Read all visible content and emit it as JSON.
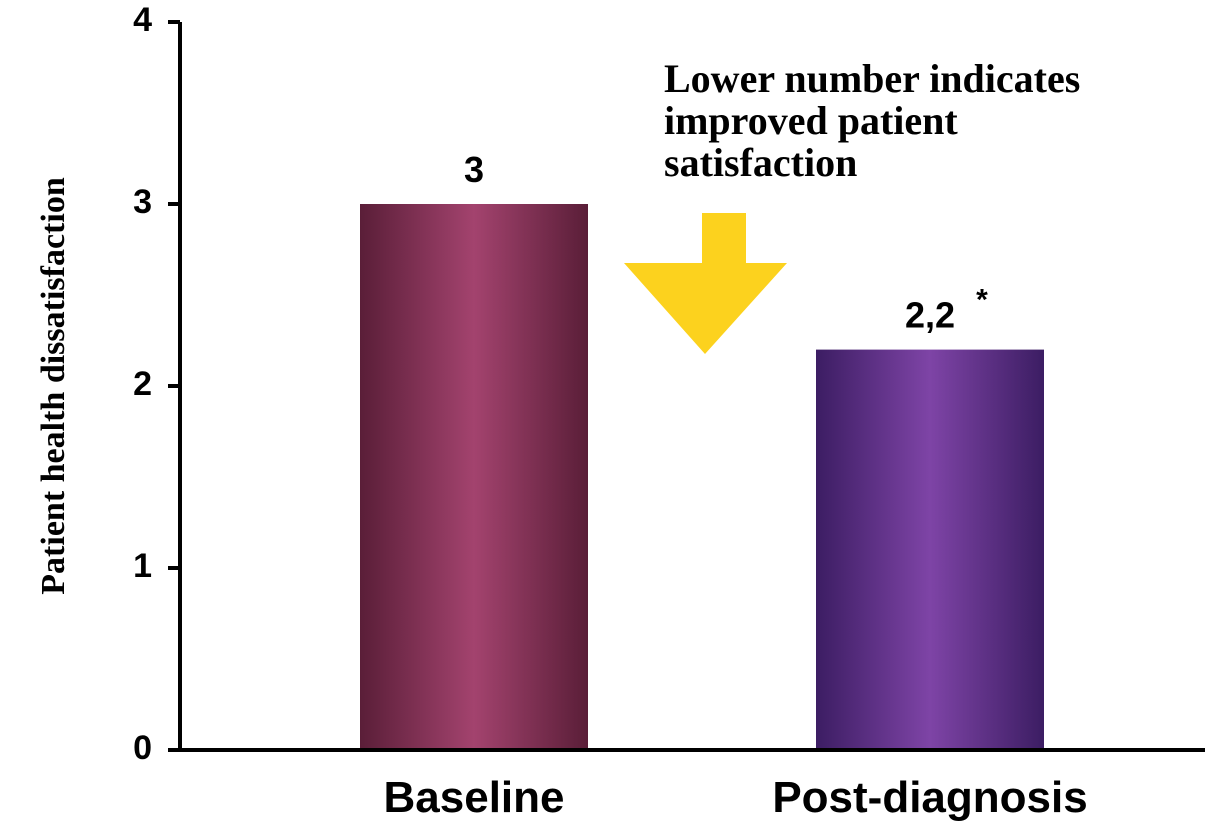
{
  "chart_data": {
    "type": "bar",
    "categories": [
      "Baseline",
      "Post-diagnosis"
    ],
    "values": [
      3,
      2.2
    ],
    "data_labels": [
      "3",
      "2,2"
    ],
    "significance_marks": [
      "",
      "*"
    ],
    "ylabel": "Patient health dissatisfaction",
    "xlabel": "",
    "ylim": [
      0,
      4
    ],
    "yticks": [
      "0",
      "1",
      "2",
      "3",
      "4"
    ],
    "grid": false,
    "annotation": {
      "lines": [
        "Lower number indicates",
        "improved patient",
        "satisfaction"
      ],
      "arrow": "down-arrow-icon"
    },
    "colors": {
      "bars": [
        "#a3436e",
        "#7e44a6"
      ],
      "bars_dark": [
        "#5a1e38",
        "#3c1d63"
      ],
      "arrow": "#fcd21e",
      "axis": "#000000"
    }
  }
}
